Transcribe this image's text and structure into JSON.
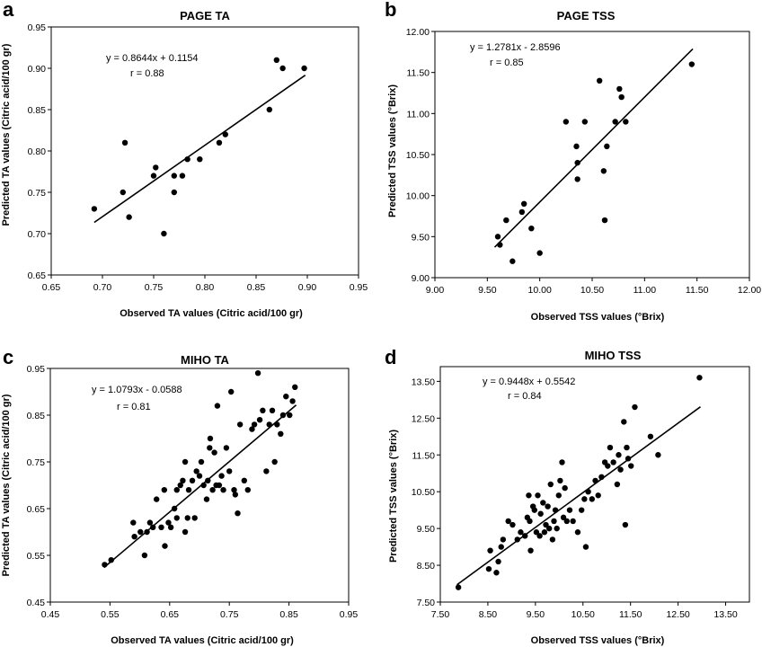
{
  "chart_data": [
    {
      "type": "scatter",
      "panel": "a",
      "title": "PAGE TA",
      "xlabel": "Observed TA values (Citric acid/100 gr)",
      "ylabel": "Predicted TA values (Citric acid/100 gr)",
      "xlim": [
        0.65,
        0.95
      ],
      "ylim": [
        0.65,
        0.95
      ],
      "xticks": [
        "0.65",
        "0.70",
        "0.75",
        "0.80",
        "0.85",
        "0.90",
        "0.95"
      ],
      "yticks": [
        "0.65",
        "0.70",
        "0.75",
        "0.80",
        "0.85",
        "0.90",
        "0.95"
      ],
      "equation": "y = 0.8644x + 0.1154",
      "r_text": "r = 0.88",
      "grid": false,
      "fit_line": {
        "slope": 0.8644,
        "intercept": 0.1154,
        "x_range": [
          0.692,
          0.898
        ]
      },
      "points": [
        [
          0.692,
          0.73
        ],
        [
          0.72,
          0.75
        ],
        [
          0.722,
          0.81
        ],
        [
          0.726,
          0.72
        ],
        [
          0.75,
          0.77
        ],
        [
          0.752,
          0.78
        ],
        [
          0.76,
          0.7
        ],
        [
          0.77,
          0.77
        ],
        [
          0.77,
          0.75
        ],
        [
          0.778,
          0.77
        ],
        [
          0.783,
          0.79
        ],
        [
          0.795,
          0.79
        ],
        [
          0.814,
          0.81
        ],
        [
          0.82,
          0.82
        ],
        [
          0.863,
          0.85
        ],
        [
          0.87,
          0.91
        ],
        [
          0.876,
          0.9
        ],
        [
          0.897,
          0.9
        ]
      ]
    },
    {
      "type": "scatter",
      "panel": "b",
      "title": "PAGE TSS",
      "xlabel": "Observed TSS values (°Brix)",
      "ylabel": "Predicted TSS values (°Brix)",
      "xlim": [
        9.0,
        12.0
      ],
      "ylim": [
        9.0,
        12.0
      ],
      "xticks": [
        "9.00",
        "9.50",
        "10.00",
        "10.50",
        "11.00",
        "11.50",
        "12.00"
      ],
      "yticks": [
        "9.00",
        "9.50",
        "10.00",
        "10.50",
        "11.00",
        "11.50",
        "12.00"
      ],
      "equation": "y = 1.2781x - 2.8596",
      "r_text": "r = 0.85",
      "grid": false,
      "fit_line": {
        "slope": 1.2781,
        "intercept": -2.8596,
        "x_range": [
          9.57,
          11.46
        ]
      },
      "points": [
        [
          9.6,
          9.5
        ],
        [
          9.62,
          9.4
        ],
        [
          9.68,
          9.7
        ],
        [
          9.74,
          9.2
        ],
        [
          9.83,
          9.8
        ],
        [
          9.85,
          9.9
        ],
        [
          9.92,
          9.6
        ],
        [
          10.0,
          9.3
        ],
        [
          10.25,
          10.9
        ],
        [
          10.35,
          10.6
        ],
        [
          10.36,
          10.4
        ],
        [
          10.36,
          10.2
        ],
        [
          10.43,
          10.9
        ],
        [
          10.57,
          11.4
        ],
        [
          10.61,
          10.3
        ],
        [
          10.62,
          9.7
        ],
        [
          10.64,
          10.6
        ],
        [
          10.72,
          10.9
        ],
        [
          10.76,
          11.3
        ],
        [
          10.78,
          11.2
        ],
        [
          10.82,
          10.9
        ],
        [
          11.45,
          11.6
        ]
      ]
    },
    {
      "type": "scatter",
      "panel": "c",
      "title": "MIHO TA",
      "xlabel": "Observed TA values (Citric acid/100 gr)",
      "ylabel": "Predicted TA values (Citric acid/100 gr)",
      "xlim": [
        0.45,
        0.95
      ],
      "ylim": [
        0.45,
        0.95
      ],
      "xticks": [
        "0.45",
        "0.55",
        "0.65",
        "0.75",
        "0.85",
        "0.95"
      ],
      "yticks": [
        "0.45",
        "0.55",
        "0.65",
        "0.75",
        "0.85",
        "0.95"
      ],
      "equation": "y = 1.0793x - 0.0588",
      "r_text": "r = 0.81",
      "grid": false,
      "fit_line": {
        "slope": 1.0793,
        "intercept": -0.0588,
        "x_range": [
          0.54,
          0.862
        ]
      },
      "points": [
        [
          0.541,
          0.53
        ],
        [
          0.552,
          0.54
        ],
        [
          0.589,
          0.62
        ],
        [
          0.591,
          0.59
        ],
        [
          0.601,
          0.6
        ],
        [
          0.608,
          0.55
        ],
        [
          0.612,
          0.6
        ],
        [
          0.617,
          0.62
        ],
        [
          0.622,
          0.61
        ],
        [
          0.628,
          0.67
        ],
        [
          0.636,
          0.61
        ],
        [
          0.641,
          0.69
        ],
        [
          0.642,
          0.57
        ],
        [
          0.648,
          0.62
        ],
        [
          0.652,
          0.61
        ],
        [
          0.658,
          0.65
        ],
        [
          0.662,
          0.63
        ],
        [
          0.662,
          0.69
        ],
        [
          0.668,
          0.7
        ],
        [
          0.672,
          0.71
        ],
        [
          0.676,
          0.75
        ],
        [
          0.676,
          0.6
        ],
        [
          0.68,
          0.63
        ],
        [
          0.682,
          0.69
        ],
        [
          0.688,
          0.71
        ],
        [
          0.692,
          0.63
        ],
        [
          0.695,
          0.73
        ],
        [
          0.7,
          0.72
        ],
        [
          0.703,
          0.75
        ],
        [
          0.707,
          0.7
        ],
        [
          0.712,
          0.67
        ],
        [
          0.714,
          0.71
        ],
        [
          0.717,
          0.78
        ],
        [
          0.718,
          0.8
        ],
        [
          0.722,
          0.69
        ],
        [
          0.725,
          0.77
        ],
        [
          0.728,
          0.7
        ],
        [
          0.73,
          0.87
        ],
        [
          0.733,
          0.7
        ],
        [
          0.737,
          0.72
        ],
        [
          0.74,
          0.69
        ],
        [
          0.745,
          0.78
        ],
        [
          0.75,
          0.73
        ],
        [
          0.753,
          0.9
        ],
        [
          0.758,
          0.69
        ],
        [
          0.76,
          0.68
        ],
        [
          0.764,
          0.64
        ],
        [
          0.768,
          0.83
        ],
        [
          0.775,
          0.71
        ],
        [
          0.781,
          0.69
        ],
        [
          0.788,
          0.82
        ],
        [
          0.792,
          0.83
        ],
        [
          0.798,
          0.94
        ],
        [
          0.801,
          0.84
        ],
        [
          0.806,
          0.86
        ],
        [
          0.812,
          0.73
        ],
        [
          0.817,
          0.83
        ],
        [
          0.822,
          0.86
        ],
        [
          0.826,
          0.75
        ],
        [
          0.83,
          0.83
        ],
        [
          0.836,
          0.81
        ],
        [
          0.84,
          0.85
        ],
        [
          0.845,
          0.89
        ],
        [
          0.851,
          0.85
        ],
        [
          0.856,
          0.88
        ],
        [
          0.86,
          0.91
        ]
      ]
    },
    {
      "type": "scatter",
      "panel": "d",
      "title": "MIHO TSS",
      "xlabel": "Observed TSS values (°Brix)",
      "ylabel": "Predicted TSS values (°Brix)",
      "xlim": [
        7.5,
        14.0
      ],
      "ylim": [
        7.5,
        13.9
      ],
      "xticks": [
        "7.50",
        "8.50",
        "9.50",
        "10.50",
        "11.50",
        "12.50",
        "13.50"
      ],
      "yticks": [
        "7.50",
        "8.50",
        "9.50",
        "10.50",
        "11.50",
        "12.50",
        "13.50"
      ],
      "equation": "y = 0.9448x + 0.5542",
      "r_text": "r = 0.84",
      "grid": false,
      "fit_line": {
        "slope": 0.9448,
        "intercept": 0.5542,
        "x_range": [
          7.85,
          12.97
        ]
      },
      "points": [
        [
          7.88,
          7.9
        ],
        [
          8.52,
          8.4
        ],
        [
          8.55,
          8.9
        ],
        [
          8.68,
          8.3
        ],
        [
          8.72,
          8.6
        ],
        [
          8.78,
          9.0
        ],
        [
          8.82,
          9.2
        ],
        [
          8.93,
          9.7
        ],
        [
          9.02,
          9.6
        ],
        [
          9.12,
          9.2
        ],
        [
          9.19,
          9.4
        ],
        [
          9.28,
          9.3
        ],
        [
          9.33,
          9.8
        ],
        [
          9.36,
          10.4
        ],
        [
          9.38,
          9.7
        ],
        [
          9.4,
          8.9
        ],
        [
          9.45,
          10.1
        ],
        [
          9.48,
          10.0
        ],
        [
          9.52,
          9.4
        ],
        [
          9.55,
          10.4
        ],
        [
          9.59,
          9.3
        ],
        [
          9.61,
          9.9
        ],
        [
          9.66,
          10.2
        ],
        [
          9.69,
          9.4
        ],
        [
          9.72,
          9.6
        ],
        [
          9.76,
          10.1
        ],
        [
          9.79,
          9.5
        ],
        [
          9.82,
          10.7
        ],
        [
          9.86,
          9.2
        ],
        [
          9.89,
          9.7
        ],
        [
          9.92,
          10.0
        ],
        [
          9.95,
          9.5
        ],
        [
          9.99,
          10.4
        ],
        [
          10.02,
          10.8
        ],
        [
          10.06,
          11.3
        ],
        [
          10.09,
          9.8
        ],
        [
          10.12,
          10.6
        ],
        [
          10.16,
          9.7
        ],
        [
          10.22,
          10.0
        ],
        [
          10.29,
          9.7
        ],
        [
          10.39,
          9.4
        ],
        [
          10.47,
          10.0
        ],
        [
          10.53,
          10.3
        ],
        [
          10.56,
          9.0
        ],
        [
          10.61,
          10.5
        ],
        [
          10.69,
          10.3
        ],
        [
          10.76,
          10.8
        ],
        [
          10.82,
          10.4
        ],
        [
          10.89,
          10.9
        ],
        [
          10.96,
          11.3
        ],
        [
          11.02,
          11.2
        ],
        [
          11.07,
          11.7
        ],
        [
          11.14,
          11.3
        ],
        [
          11.22,
          10.7
        ],
        [
          11.25,
          11.5
        ],
        [
          11.29,
          11.1
        ],
        [
          11.36,
          12.4
        ],
        [
          11.39,
          9.6
        ],
        [
          11.42,
          11.7
        ],
        [
          11.45,
          11.4
        ],
        [
          11.51,
          11.2
        ],
        [
          11.59,
          12.8
        ],
        [
          11.92,
          12.0
        ],
        [
          12.08,
          11.5
        ],
        [
          12.95,
          13.6
        ]
      ]
    }
  ],
  "panels": [
    {
      "letter": "a"
    },
    {
      "letter": "b"
    },
    {
      "letter": "c"
    },
    {
      "letter": "d"
    }
  ]
}
